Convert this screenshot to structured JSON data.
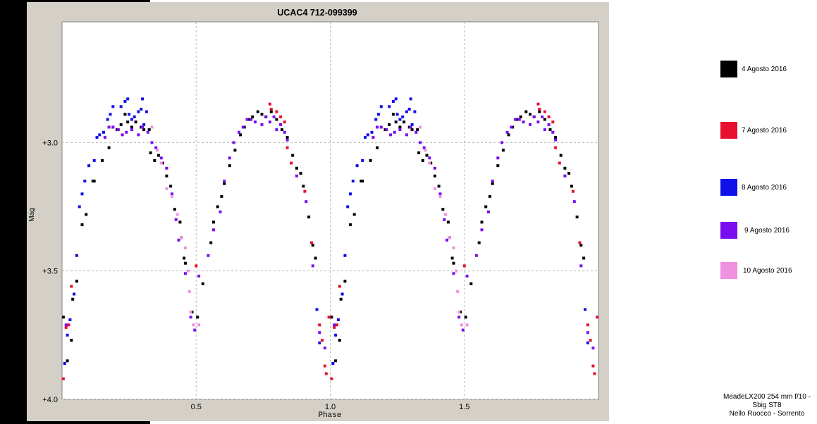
{
  "chart_data": {
    "type": "scatter",
    "title": "UCAC4  712-099399",
    "xlabel": "Phase",
    "ylabel": "Mag",
    "xlim": [
      0.0,
      2.0
    ],
    "ylim": [
      2.53,
      4.0
    ],
    "y_inverted": true,
    "x_ticks": [
      {
        "value": 0.5,
        "label": "0.5"
      },
      {
        "value": 1.0,
        "label": "1.0"
      },
      {
        "value": 1.5,
        "label": "1.5"
      }
    ],
    "y_ticks": [
      {
        "value": 3.0,
        "label": "+3.0"
      },
      {
        "value": 3.5,
        "label": "+3.5"
      },
      {
        "value": 4.0,
        "label": "+4.0"
      }
    ],
    "grid": true,
    "legend_position": "right",
    "repeat_offset": 1.0,
    "series": [
      {
        "name": "4 Agosto 2016",
        "color": "#000000",
        "points": [
          [
            0.005,
            3.68
          ],
          [
            0.02,
            3.85
          ],
          [
            0.035,
            3.77
          ],
          [
            0.04,
            3.61
          ],
          [
            0.055,
            3.54
          ],
          [
            0.075,
            3.32
          ],
          [
            0.09,
            3.28
          ],
          [
            0.115,
            3.15
          ],
          [
            0.12,
            3.15
          ],
          [
            0.15,
            3.07
          ],
          [
            0.175,
            3.02
          ],
          [
            0.205,
            2.95
          ],
          [
            0.22,
            2.93
          ],
          [
            0.235,
            2.89
          ],
          [
            0.245,
            2.92
          ],
          [
            0.26,
            2.94
          ],
          [
            0.275,
            2.92
          ],
          [
            0.295,
            2.94
          ],
          [
            0.305,
            2.95
          ],
          [
            0.325,
            2.95
          ],
          [
            0.33,
            3.04
          ],
          [
            0.345,
            3.07
          ],
          [
            0.36,
            3.05
          ],
          [
            0.375,
            3.08
          ],
          [
            0.39,
            3.13
          ],
          [
            0.405,
            3.17
          ],
          [
            0.42,
            3.26
          ],
          [
            0.44,
            3.31
          ],
          [
            0.445,
            3.37
          ],
          [
            0.455,
            3.45
          ],
          [
            0.46,
            3.47
          ],
          [
            0.485,
            3.66
          ],
          [
            0.505,
            3.68
          ],
          [
            0.525,
            3.55
          ],
          [
            0.555,
            3.39
          ],
          [
            0.565,
            3.31
          ],
          [
            0.58,
            3.25
          ],
          [
            0.595,
            3.21
          ],
          [
            0.605,
            3.16
          ],
          [
            0.625,
            3.09
          ],
          [
            0.645,
            3.03
          ],
          [
            0.665,
            2.97
          ],
          [
            0.68,
            2.94
          ],
          [
            0.695,
            2.91
          ],
          [
            0.71,
            2.9
          ],
          [
            0.73,
            2.88
          ],
          [
            0.745,
            2.89
          ],
          [
            0.76,
            2.9
          ],
          [
            0.78,
            2.88
          ],
          [
            0.8,
            2.91
          ],
          [
            0.82,
            2.95
          ],
          [
            0.84,
            2.98
          ],
          [
            0.86,
            3.05
          ],
          [
            0.875,
            3.1
          ],
          [
            0.89,
            3.12
          ],
          [
            0.9,
            3.17
          ],
          [
            0.92,
            3.29
          ],
          [
            0.935,
            3.4
          ],
          [
            0.945,
            3.45
          ]
        ]
      },
      {
        "name": "7 Agosto 2016",
        "color": "#e8102e",
        "points": [
          [
            0.005,
            3.92
          ],
          [
            0.015,
            3.72
          ],
          [
            0.025,
            3.71
          ],
          [
            0.035,
            3.56
          ],
          [
            0.5,
            3.48
          ],
          [
            0.775,
            2.85
          ],
          [
            0.78,
            2.87
          ],
          [
            0.8,
            2.88
          ],
          [
            0.815,
            2.9
          ],
          [
            0.83,
            2.92
          ],
          [
            0.84,
            3.02
          ],
          [
            0.855,
            3.08
          ],
          [
            0.905,
            3.19
          ],
          [
            0.93,
            3.39
          ],
          [
            0.96,
            3.71
          ],
          [
            0.97,
            3.77
          ],
          [
            0.98,
            3.87
          ],
          [
            0.985,
            3.9
          ],
          [
            0.995,
            3.68
          ]
        ]
      },
      {
        "name": "8 Agosto 2016",
        "color": "#1010e8",
        "points": [
          [
            0.01,
            3.86
          ],
          [
            0.02,
            3.75
          ],
          [
            0.03,
            3.69
          ],
          [
            0.045,
            3.59
          ],
          [
            0.055,
            3.44
          ],
          [
            0.065,
            3.25
          ],
          [
            0.075,
            3.2
          ],
          [
            0.085,
            3.15
          ],
          [
            0.1,
            3.09
          ],
          [
            0.12,
            3.07
          ],
          [
            0.13,
            2.98
          ],
          [
            0.14,
            2.97
          ],
          [
            0.155,
            2.96
          ],
          [
            0.17,
            2.91
          ],
          [
            0.18,
            2.89
          ],
          [
            0.19,
            2.86
          ],
          [
            0.22,
            2.86
          ],
          [
            0.235,
            2.84
          ],
          [
            0.245,
            2.83
          ],
          [
            0.25,
            2.89
          ],
          [
            0.26,
            2.91
          ],
          [
            0.27,
            2.9
          ],
          [
            0.285,
            2.88
          ],
          [
            0.295,
            2.87
          ],
          [
            0.3,
            2.83
          ],
          [
            0.305,
            2.93
          ],
          [
            0.315,
            2.88
          ],
          [
            0.95,
            3.65
          ],
          [
            0.96,
            3.78
          ]
        ]
      },
      {
        "name": "9 Agosto 2016",
        "color": "#7a0ef0",
        "points": [
          [
            0.015,
            3.71
          ],
          [
            0.16,
            2.98
          ],
          [
            0.175,
            2.94
          ],
          [
            0.19,
            2.94
          ],
          [
            0.21,
            2.95
          ],
          [
            0.225,
            2.97
          ],
          [
            0.24,
            2.96
          ],
          [
            0.26,
            2.95
          ],
          [
            0.285,
            2.97
          ],
          [
            0.3,
            2.94
          ],
          [
            0.32,
            2.96
          ],
          [
            0.335,
            3.0
          ],
          [
            0.35,
            3.02
          ],
          [
            0.37,
            3.06
          ],
          [
            0.39,
            3.1
          ],
          [
            0.41,
            3.2
          ],
          [
            0.425,
            3.3
          ],
          [
            0.435,
            3.38
          ],
          [
            0.46,
            3.51
          ],
          [
            0.48,
            3.68
          ],
          [
            0.495,
            3.73
          ],
          [
            0.51,
            3.52
          ],
          [
            0.545,
            3.44
          ],
          [
            0.565,
            3.34
          ],
          [
            0.59,
            3.27
          ],
          [
            0.605,
            3.15
          ],
          [
            0.625,
            3.06
          ],
          [
            0.64,
            3.0
          ],
          [
            0.66,
            2.96
          ],
          [
            0.675,
            2.94
          ],
          [
            0.69,
            2.91
          ],
          [
            0.705,
            2.91
          ],
          [
            0.72,
            2.92
          ],
          [
            0.745,
            2.93
          ],
          [
            0.76,
            2.9
          ],
          [
            0.775,
            2.92
          ],
          [
            0.79,
            2.9
          ],
          [
            0.8,
            2.95
          ],
          [
            0.815,
            2.93
          ],
          [
            0.83,
            2.96
          ],
          [
            0.84,
            2.99
          ],
          [
            0.875,
            3.13
          ],
          [
            0.91,
            3.23
          ],
          [
            0.935,
            3.48
          ],
          [
            0.96,
            3.74
          ],
          [
            0.98,
            3.8
          ]
        ]
      },
      {
        "name": "10 Agosto 2016",
        "color": "#f090e0",
        "points": [
          [
            0.335,
            2.94
          ],
          [
            0.355,
            3.03
          ],
          [
            0.37,
            3.08
          ],
          [
            0.39,
            3.18
          ],
          [
            0.41,
            3.21
          ],
          [
            0.43,
            3.28
          ],
          [
            0.445,
            3.37
          ],
          [
            0.46,
            3.41
          ],
          [
            0.47,
            3.5
          ],
          [
            0.475,
            3.58
          ],
          [
            0.48,
            3.66
          ],
          [
            0.49,
            3.71
          ],
          [
            0.51,
            3.71
          ]
        ]
      }
    ]
  },
  "credits": {
    "line1": "MeadeLX200 254 mm f/10 -",
    "line2": "Sbig ST8",
    "line3": "Nello Ruocco - Sorrento"
  }
}
